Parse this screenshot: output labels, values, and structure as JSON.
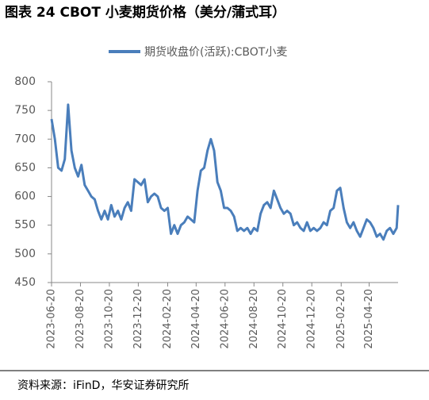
{
  "chart_data": {
    "type": "line",
    "title": "图表 24 CBOT 小麦期货价格（美分/蒲式耳）",
    "source": "资料来源：iFinD，华安证券研究所",
    "x": [
      "2023-06-20",
      "2023-06-27",
      "2023-07-04",
      "2023-07-11",
      "2023-07-18",
      "2023-07-25",
      "2023-08-01",
      "2023-08-08",
      "2023-08-15",
      "2023-08-22",
      "2023-08-29",
      "2023-09-05",
      "2023-09-12",
      "2023-09-19",
      "2023-09-26",
      "2023-10-03",
      "2023-10-10",
      "2023-10-17",
      "2023-10-24",
      "2023-10-31",
      "2023-11-07",
      "2023-11-14",
      "2023-11-21",
      "2023-11-28",
      "2023-12-05",
      "2023-12-12",
      "2023-12-19",
      "2023-12-26",
      "2024-01-02",
      "2024-01-09",
      "2024-01-16",
      "2024-01-23",
      "2024-01-30",
      "2024-02-06",
      "2024-02-13",
      "2024-02-20",
      "2024-02-27",
      "2024-03-05",
      "2024-03-12",
      "2024-03-19",
      "2024-03-26",
      "2024-04-02",
      "2024-04-09",
      "2024-04-16",
      "2024-04-23",
      "2024-04-30",
      "2024-05-07",
      "2024-05-14",
      "2024-05-21",
      "2024-05-28",
      "2024-06-04",
      "2024-06-11",
      "2024-06-18",
      "2024-06-25",
      "2024-07-02",
      "2024-07-09",
      "2024-07-16",
      "2024-07-23",
      "2024-07-30",
      "2024-08-06",
      "2024-08-13",
      "2024-08-20",
      "2024-08-27",
      "2024-09-03",
      "2024-09-10",
      "2024-09-17",
      "2024-09-24",
      "2024-10-01",
      "2024-10-08",
      "2024-10-15",
      "2024-10-22",
      "2024-10-29",
      "2024-11-05",
      "2024-11-12",
      "2024-11-19",
      "2024-11-26",
      "2024-12-03",
      "2024-12-10",
      "2024-12-17",
      "2024-12-24",
      "2024-12-31",
      "2025-01-07",
      "2025-01-14",
      "2025-01-21",
      "2025-01-28",
      "2025-02-04",
      "2025-02-11",
      "2025-02-18",
      "2025-02-25",
      "2025-03-04",
      "2025-03-11",
      "2025-03-18",
      "2025-03-25",
      "2025-04-01",
      "2025-04-08",
      "2025-04-15",
      "2025-04-22",
      "2025-04-29",
      "2025-05-06",
      "2025-05-13",
      "2025-05-20",
      "2025-05-27",
      "2025-06-03",
      "2025-06-10",
      "2025-06-17",
      "2025-06-20"
    ],
    "series": [
      {
        "name": "期货收盘价(活跃):CBOT小麦",
        "color": "#4a7ebb",
        "values": [
          735,
          700,
          650,
          645,
          665,
          760,
          680,
          650,
          635,
          655,
          620,
          610,
          600,
          595,
          575,
          560,
          575,
          560,
          585,
          565,
          575,
          560,
          580,
          590,
          575,
          630,
          625,
          620,
          630,
          590,
          600,
          605,
          600,
          580,
          575,
          580,
          535,
          550,
          535,
          550,
          555,
          565,
          560,
          555,
          610,
          645,
          650,
          680,
          700,
          680,
          625,
          610,
          580,
          580,
          575,
          565,
          540,
          545,
          540,
          545,
          535,
          545,
          540,
          570,
          585,
          590,
          580,
          610,
          595,
          580,
          570,
          575,
          570,
          550,
          555,
          545,
          540,
          555,
          540,
          545,
          540,
          545,
          555,
          550,
          575,
          580,
          610,
          615,
          580,
          555,
          545,
          555,
          540,
          530,
          545,
          560,
          555,
          545,
          530,
          535,
          525,
          540,
          545,
          535,
          545,
          585
        ]
      }
    ],
    "xlim": [
      "2023-06-20",
      "2025-06-20"
    ],
    "xticks": [
      "2023-06-20",
      "2023-08-20",
      "2023-10-20",
      "2023-12-20",
      "2024-02-20",
      "2024-04-20",
      "2024-06-20",
      "2024-08-20",
      "2024-10-20",
      "2024-12-20",
      "2025-02-20",
      "2025-04-20"
    ],
    "ylim": [
      450,
      800
    ],
    "yticks": [
      450,
      500,
      550,
      600,
      650,
      700,
      750,
      800
    ]
  }
}
